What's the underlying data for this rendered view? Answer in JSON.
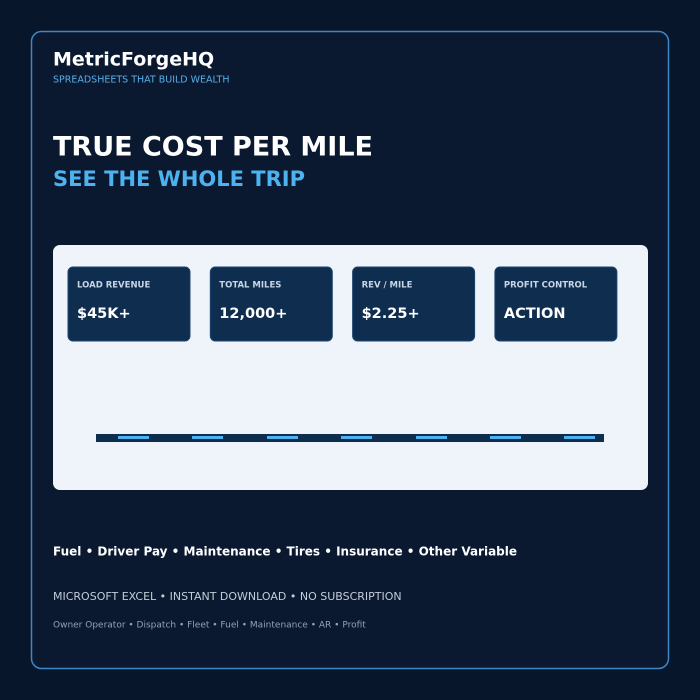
{
  "header": {
    "brand": "MetricForgeHQ",
    "tagline": "SPREADSHEETS THAT BUILD WEALTH"
  },
  "hero": {
    "title": "TRUE COST PER MILE",
    "subtitle": "SEE THE WHOLE TRIP"
  },
  "cards": [
    {
      "label": "LOAD REVENUE",
      "value": "$45K+"
    },
    {
      "label": "TOTAL MILES",
      "value": "12,000+"
    },
    {
      "label": "REV / MILE",
      "value": "$2.25+"
    },
    {
      "label": "PROFIT CONTROL",
      "value": "ACTION"
    }
  ],
  "footer": {
    "categories": "Fuel • Driver Pay • Maintenance • Tires • Insurance • Other Variable",
    "product": "MICROSOFT EXCEL • INSTANT DOWNLOAD • NO SUBSCRIPTION",
    "tags": "Owner Operator • Dispatch • Fleet • Fuel • Maintenance • AR • Profit"
  }
}
